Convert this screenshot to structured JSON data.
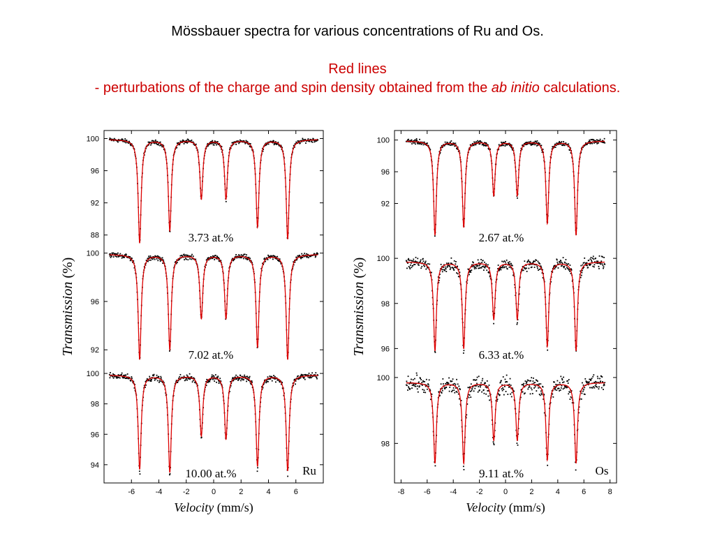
{
  "slide": {
    "title": "Mössbauer spectra for various concentrations of Ru and Os.",
    "note_heading": "Red lines",
    "note_prefix": "- perturbations of the charge and spin density obtained from the ",
    "note_italic": "ab initio",
    "note_suffix": " calculations."
  },
  "colors": {
    "data_points": "#000000",
    "fit_line": "#dd0000",
    "axes": "#000000"
  },
  "chart_data": [
    {
      "type": "scatter",
      "element": "Ru",
      "xlabel_italic": "Velocity",
      "xlabel_unit": "(mm/s)",
      "ylabel_italic": "Transmission",
      "ylabel_unit": "(%)",
      "xlim": [
        -8,
        8
      ],
      "xticks": [
        -6,
        -4,
        -2,
        0,
        2,
        4,
        6
      ],
      "x_tick_labels": [
        "-6",
        "-4",
        "-2",
        "0",
        "2",
        "4",
        "6"
      ],
      "line_positions": [
        -5.4,
        -3.2,
        -0.9,
        0.9,
        3.2,
        5.4
      ],
      "panels": [
        {
          "label": "3.73 at.%",
          "ylim": [
            86.5,
            101
          ],
          "yticks": [
            100,
            96,
            92,
            88
          ],
          "y_tick_labels": [
            "100",
            "96",
            "92",
            "88"
          ],
          "series": [
            {
              "name": "",
              "kind": "measured",
              "baseline": 99.9,
              "line_minima": [
                87.0,
                88.5,
                92.5,
                92.5,
                89.0,
                87.5
              ],
              "noise": 0.25
            },
            {
              "name": "",
              "kind": "red line",
              "baseline": 99.9,
              "line_minima": [
                87.0,
                88.5,
                92.5,
                92.5,
                89.0,
                87.5
              ]
            }
          ]
        },
        {
          "label": "7.02 at.%",
          "ylim": [
            90.8,
            100.5
          ],
          "yticks": [
            100,
            96,
            92
          ],
          "y_tick_labels": [
            "100",
            "96",
            "92"
          ],
          "series": [
            {
              "name": "",
              "kind": "measured",
              "baseline": 99.9,
              "line_minima": [
                91.2,
                92.0,
                94.6,
                94.6,
                92.2,
                91.2
              ],
              "noise": 0.2
            },
            {
              "name": "",
              "kind": "red line",
              "baseline": 99.9,
              "line_minima": [
                91.2,
                92.0,
                94.6,
                94.6,
                92.2,
                91.2
              ]
            }
          ]
        },
        {
          "label": "10.00 at.%",
          "ylim": [
            92.8,
            100.6
          ],
          "yticks": [
            100,
            98,
            96,
            94
          ],
          "y_tick_labels": [
            "100",
            "98",
            "96",
            94
          ],
          "series": [
            {
              "name": "",
              "kind": "measured",
              "baseline": 99.9,
              "line_minima": [
                93.5,
                93.3,
                95.8,
                95.6,
                93.7,
                93.4
              ],
              "noise": 0.2
            },
            {
              "name": "",
              "kind": "red line",
              "baseline": 99.9,
              "line_minima": [
                93.7,
                93.5,
                95.9,
                95.7,
                93.9,
                93.6
              ]
            }
          ]
        }
      ]
    },
    {
      "type": "scatter",
      "element": "Os",
      "xlabel_italic": "Velocity",
      "xlabel_unit": "(mm/s)",
      "ylabel_italic": "Transmission",
      "ylabel_unit": "(%)",
      "xlim": [
        -8.5,
        8.5
      ],
      "xticks": [
        -8,
        -6,
        -4,
        -2,
        0,
        2,
        4,
        6,
        8
      ],
      "x_tick_labels": [
        "-8",
        "-6",
        "-4",
        "-2",
        "0",
        "2",
        "4",
        "6",
        "8"
      ],
      "line_positions": [
        -5.4,
        -3.2,
        -0.9,
        0.9,
        3.2,
        5.4
      ],
      "panels": [
        {
          "label": "2.67 at.%",
          "ylim": [
            86.5,
            101.2
          ],
          "yticks": [
            100,
            96,
            92
          ],
          "y_tick_labels": [
            "100",
            "96",
            "92"
          ],
          "series": [
            {
              "name": "",
              "kind": "measured",
              "baseline": 99.9,
              "line_minima": [
                88.0,
                89.0,
                93.0,
                93.0,
                89.5,
                88.0
              ],
              "noise": 0.3
            },
            {
              "name": "",
              "kind": "red line",
              "baseline": 99.9,
              "line_minima": [
                88.0,
                89.0,
                93.0,
                93.0,
                89.5,
                88.0
              ]
            }
          ]
        },
        {
          "label": "6.33 at.%",
          "ylim": [
            95.3,
            100.5
          ],
          "yticks": [
            100,
            98,
            96
          ],
          "y_tick_labels": [
            "100",
            "98",
            "96"
          ],
          "series": [
            {
              "name": "",
              "kind": "measured",
              "baseline": 99.85,
              "line_minima": [
                95.8,
                95.9,
                97.2,
                97.2,
                96.0,
                95.8
              ],
              "noise": 0.25
            },
            {
              "name": "",
              "kind": "red line",
              "baseline": 99.85,
              "line_minima": [
                95.9,
                96.0,
                97.3,
                97.3,
                96.1,
                95.9
              ]
            }
          ]
        },
        {
          "label": "9.11 at.%",
          "ylim": [
            96.8,
            100.4
          ],
          "yticks": [
            100,
            98
          ],
          "y_tick_labels": [
            "100",
            "98"
          ],
          "series": [
            {
              "name": "",
              "kind": "measured",
              "baseline": 99.85,
              "line_minima": [
                97.3,
                97.3,
                98.0,
                98.0,
                97.4,
                97.3
              ],
              "noise": 0.25
            },
            {
              "name": "",
              "kind": "red line",
              "baseline": 99.85,
              "line_minima": [
                97.4,
                97.4,
                98.1,
                98.1,
                97.5,
                97.4
              ]
            }
          ]
        }
      ]
    }
  ]
}
